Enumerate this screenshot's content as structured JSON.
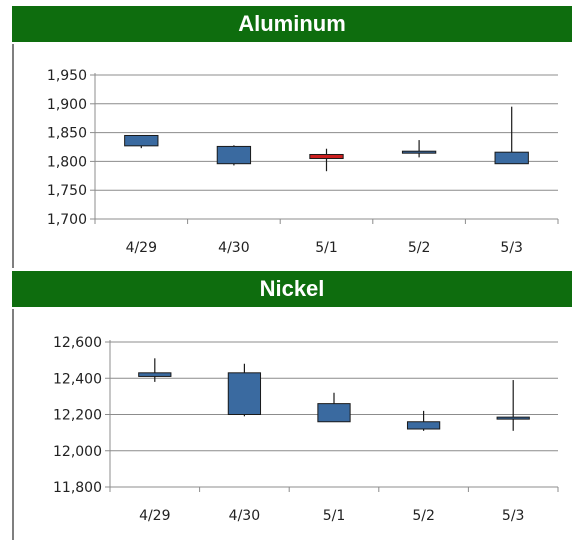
{
  "chart_data": [
    {
      "type": "candlestick",
      "title": "Aluminum",
      "categories": [
        "4/29",
        "4/30",
        "5/1",
        "5/2",
        "5/3"
      ],
      "ylim": [
        1700,
        1950
      ],
      "yticks": [
        "1,700",
        "1,750",
        "1,800",
        "1,850",
        "1,900",
        "1,950"
      ],
      "ytick_values": [
        1700,
        1750,
        1800,
        1850,
        1900,
        1950
      ],
      "grid": true,
      "candles": [
        {
          "open": 1845,
          "close": 1827,
          "high": 1845,
          "low": 1823
        },
        {
          "open": 1826,
          "close": 1796,
          "high": 1828,
          "low": 1793
        },
        {
          "open": 1805,
          "close": 1812,
          "high": 1822,
          "low": 1783
        },
        {
          "open": 1816,
          "close": 1816,
          "high": 1837,
          "low": 1807
        },
        {
          "open": 1816,
          "close": 1796,
          "high": 1895,
          "low": 1796
        }
      ],
      "colors": {
        "down": "#3a6aa0",
        "up": "#cc1f1f",
        "wick": "#1a1a1a"
      }
    },
    {
      "type": "candlestick",
      "title": "Nickel",
      "categories": [
        "4/29",
        "4/30",
        "5/1",
        "5/2",
        "5/3"
      ],
      "ylim": [
        11800,
        12600
      ],
      "yticks": [
        "11,800",
        "12,000",
        "12,200",
        "12,400",
        "12,600"
      ],
      "ytick_values": [
        11800,
        12000,
        12200,
        12400,
        12600
      ],
      "grid": true,
      "candles": [
        {
          "open": 12430,
          "close": 12410,
          "high": 12510,
          "low": 12380
        },
        {
          "open": 12430,
          "close": 12200,
          "high": 12480,
          "low": 12190
        },
        {
          "open": 12260,
          "close": 12160,
          "high": 12320,
          "low": 12160
        },
        {
          "open": 12160,
          "close": 12120,
          "high": 12220,
          "low": 12110
        },
        {
          "open": 12180,
          "close": 12170,
          "high": 12390,
          "low": 12110
        }
      ],
      "colors": {
        "down": "#3a6aa0",
        "up": "#cc1f1f",
        "wick": "#1a1a1a"
      }
    }
  ]
}
